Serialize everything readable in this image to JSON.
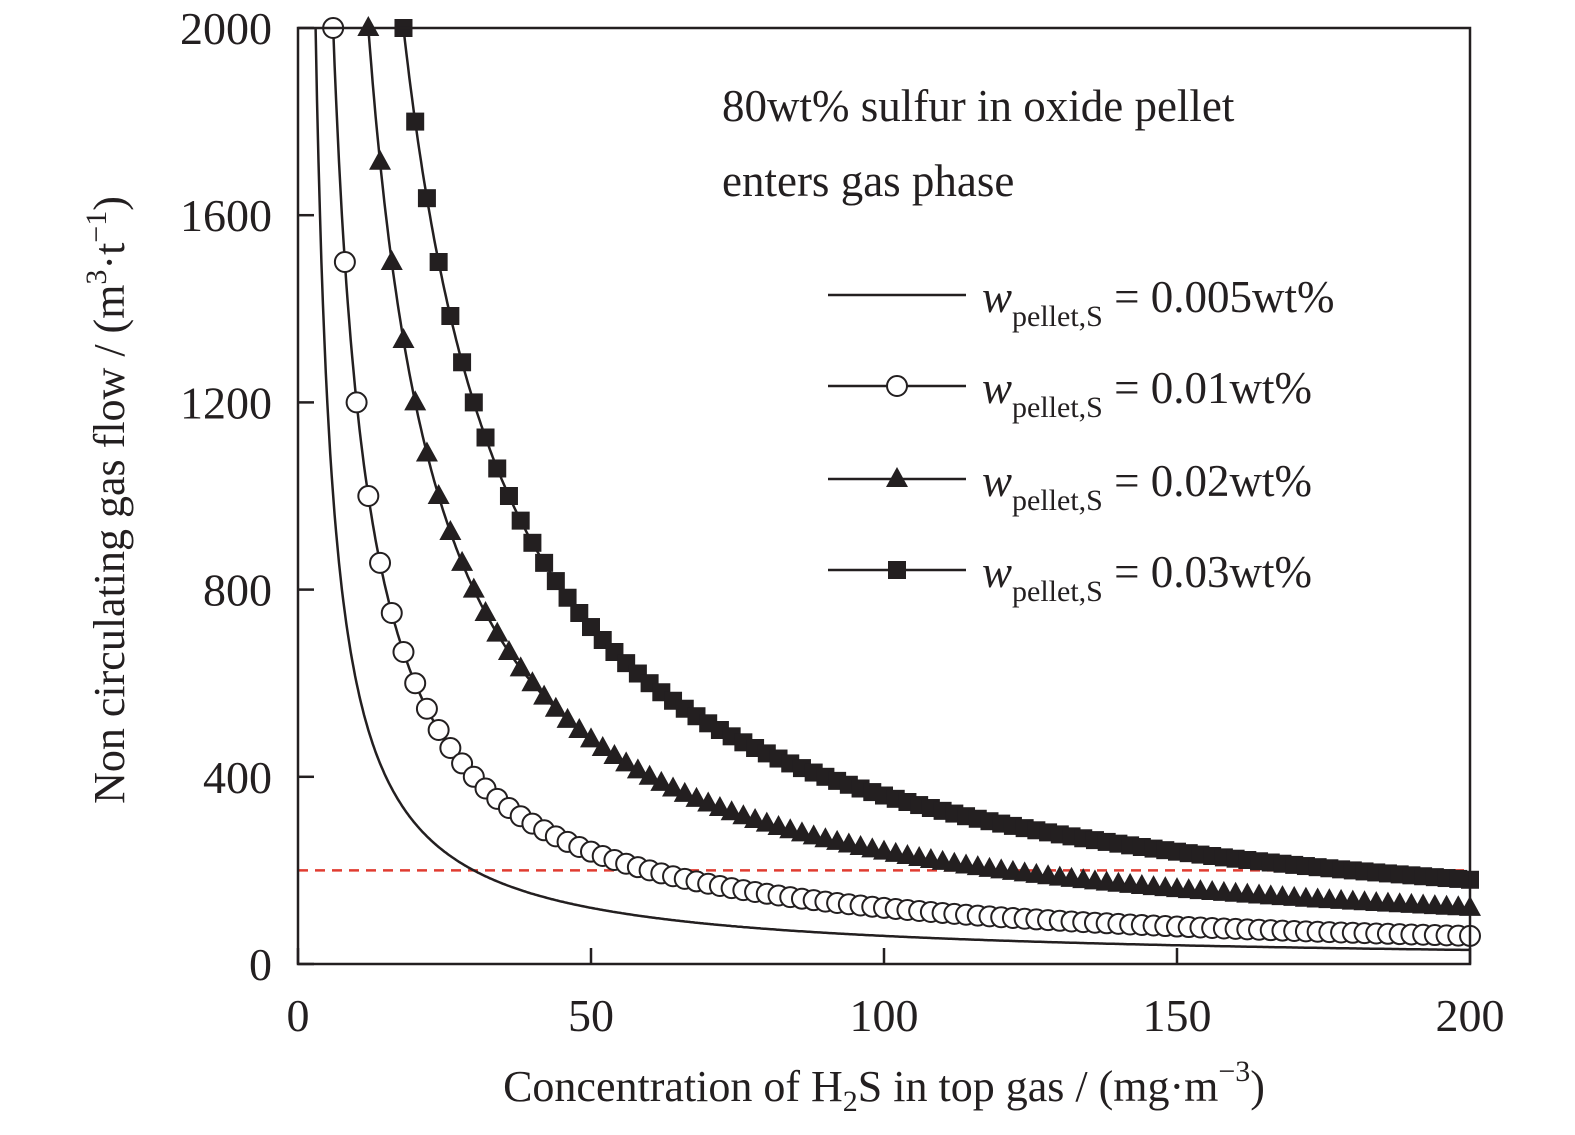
{
  "chart_data": {
    "type": "scatter",
    "title": "",
    "xlabel": {
      "prefix": "Concentration of H",
      "sub": "2",
      "suffix": "S in top gas / (mg·m",
      "sup": "−3",
      "end": ")"
    },
    "ylabel": {
      "prefix": "Non circulating gas flow / (m",
      "sup1": "3",
      "mid": "·t",
      "sup2": "−1",
      "end": ")"
    },
    "xlim": [
      0,
      200
    ],
    "ylim": [
      0,
      2000
    ],
    "xticks": [
      0,
      50,
      100,
      150,
      200
    ],
    "yticks": [
      0,
      400,
      800,
      1200,
      1600,
      2000
    ],
    "xtick_labels": [
      "0",
      "50",
      "100",
      "150",
      "200"
    ],
    "ytick_labels": [
      "0",
      "400",
      "800",
      "1200",
      "1600",
      "2000"
    ],
    "grid": false,
    "legend_position": "upper-right",
    "annotation": [
      "80wt% sulfur in oxide pellet",
      "enters gas phase"
    ],
    "reference_line": {
      "y": 200,
      "style": "dashed",
      "color": "#e03c31"
    },
    "series": [
      {
        "name": "w",
        "name_sub": "pellet,S",
        "name_value": " = 0.005wt%",
        "marker": "none",
        "k": 6000,
        "x": [
          3,
          4,
          5,
          6,
          8,
          10,
          12,
          15,
          20,
          25,
          30,
          40,
          50,
          60,
          80,
          100,
          120,
          150,
          175,
          200
        ],
        "y": [
          2000,
          1500,
          1200,
          1000,
          750,
          600,
          500,
          400,
          300,
          240,
          200,
          150,
          120,
          100,
          75,
          60,
          50,
          40,
          34.3,
          30
        ]
      },
      {
        "name": "w",
        "name_sub": "pellet,S",
        "name_value": " = 0.01wt%",
        "marker": "open-circle",
        "k": 12000,
        "x": [
          6,
          8,
          10,
          12,
          14,
          16,
          18,
          20,
          24,
          30,
          40,
          50,
          60,
          70,
          80,
          100,
          120,
          140,
          160,
          180,
          200
        ],
        "y": [
          2000,
          1500,
          1200,
          1000,
          857,
          750,
          667,
          600,
          500,
          400,
          300,
          240,
          200,
          171,
          150,
          120,
          100,
          86,
          75,
          67,
          60
        ]
      },
      {
        "name": "w",
        "name_sub": "pellet,S",
        "name_value": " = 0.02wt%",
        "marker": "filled-triangle",
        "k": 24000,
        "x": [
          12,
          14,
          16,
          18,
          20,
          24,
          30,
          40,
          50,
          60,
          80,
          100,
          120,
          150,
          200
        ],
        "y": [
          2000,
          1714,
          1500,
          1333,
          1200,
          1000,
          800,
          600,
          480,
          400,
          300,
          240,
          200,
          160,
          120
        ]
      },
      {
        "name": "w",
        "name_sub": "pellet,S",
        "name_value": " = 0.03wt%",
        "marker": "filled-square",
        "k": 36000,
        "x": [
          18,
          20,
          22,
          24,
          26,
          28,
          30,
          36,
          40,
          50,
          60,
          80,
          100,
          120,
          150,
          180,
          200
        ],
        "y": [
          2000,
          1800,
          1636,
          1500,
          1385,
          1286,
          1200,
          1000,
          900,
          720,
          600,
          450,
          360,
          300,
          240,
          200,
          180
        ]
      }
    ]
  }
}
